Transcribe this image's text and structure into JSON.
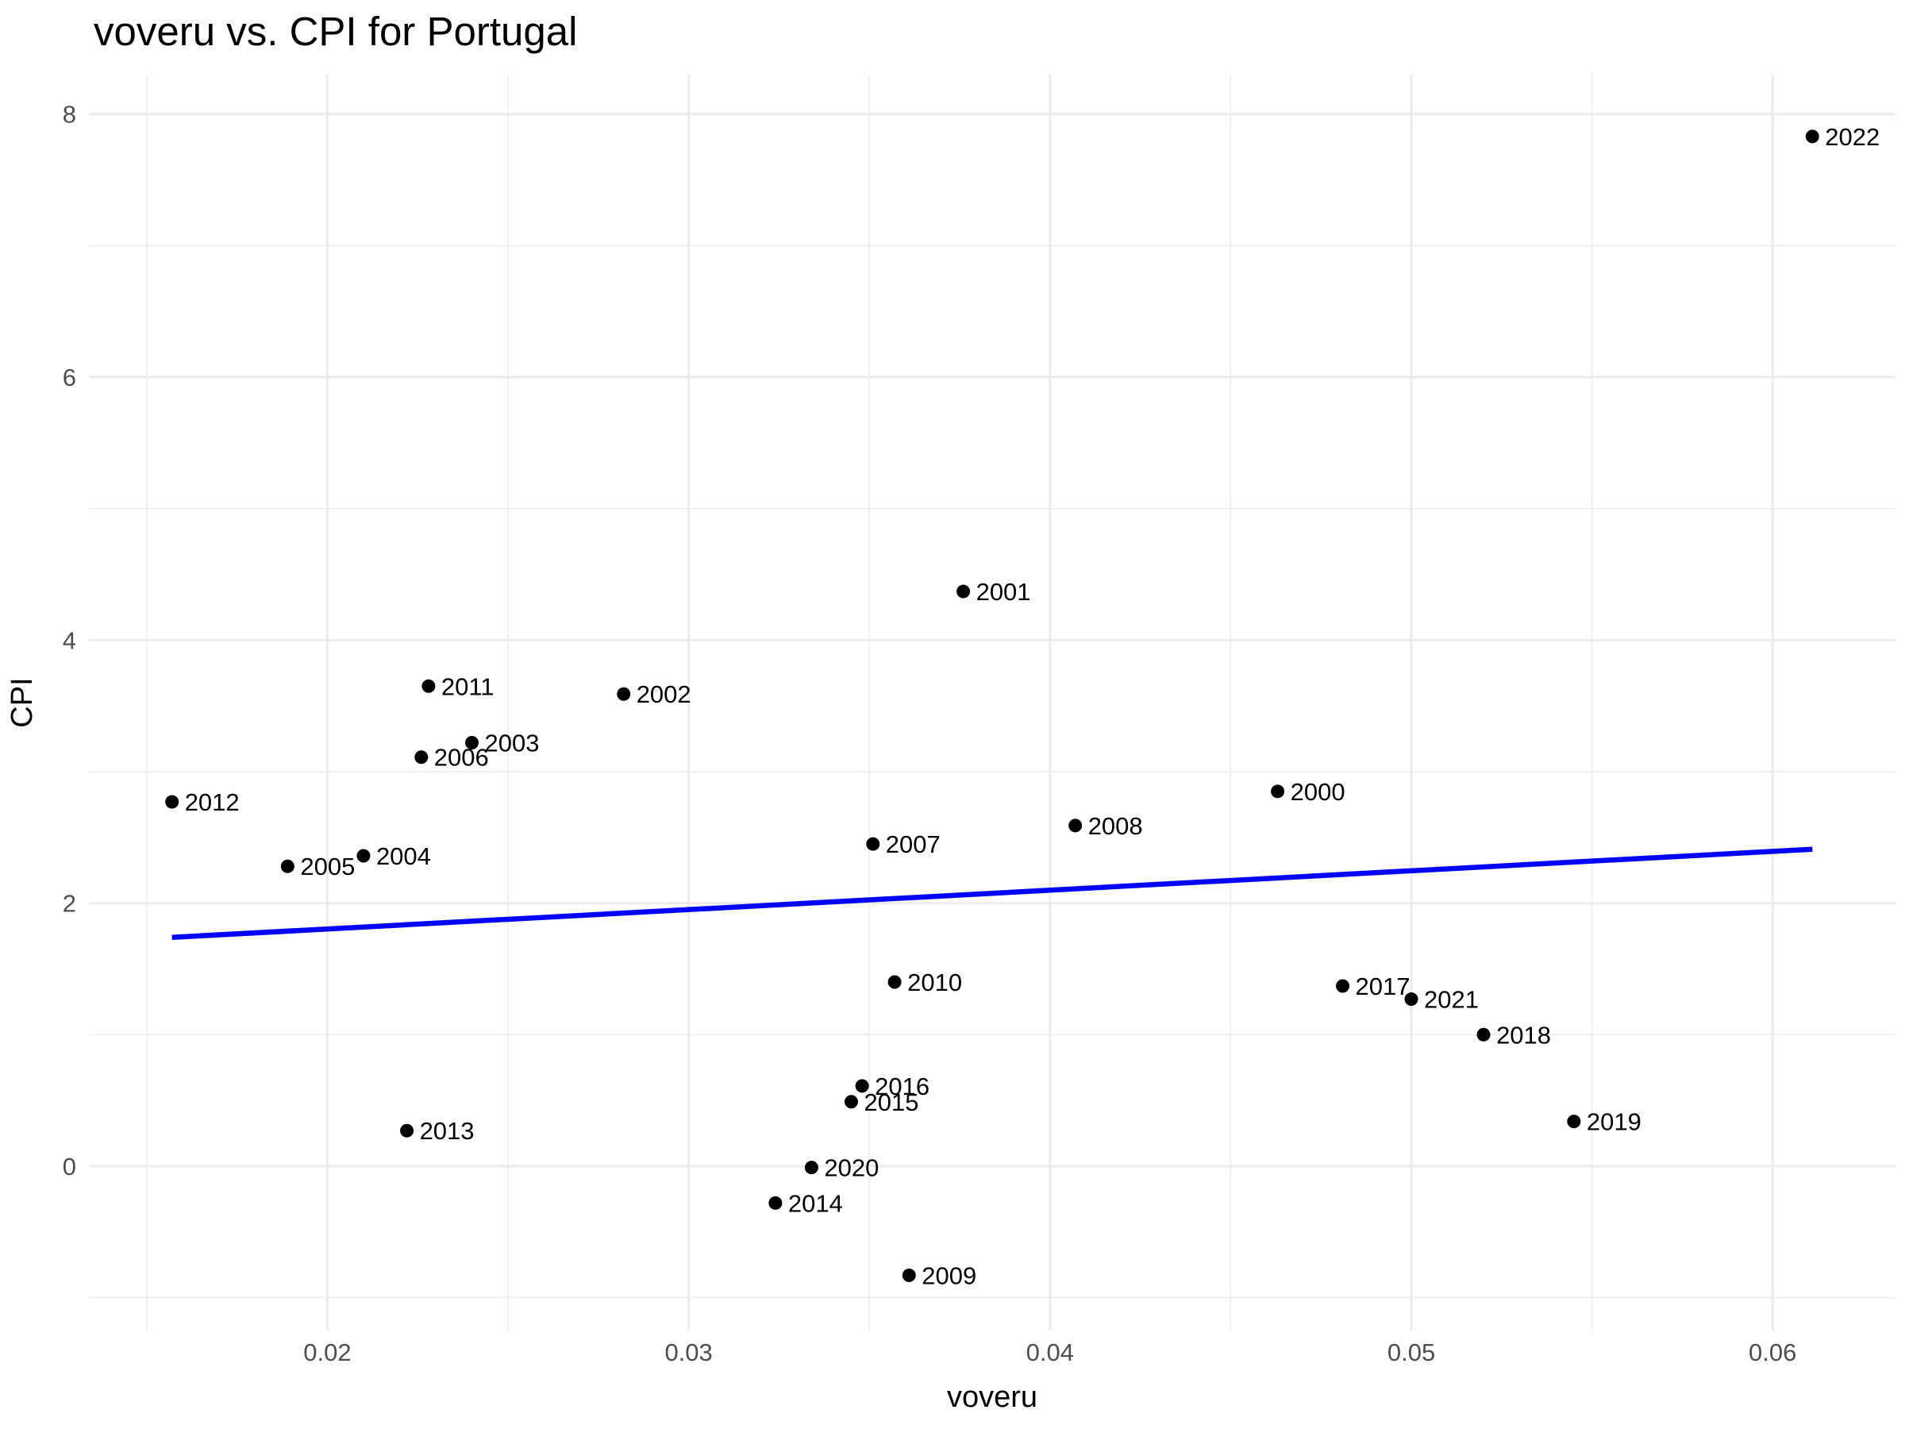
{
  "chart_data": {
    "type": "scatter",
    "title": "voveru vs. CPI for Portugal",
    "xlabel": "voveru",
    "ylabel": "CPI",
    "xlim": [
      0.0134,
      0.0634
    ],
    "ylim": [
      -1.25,
      8.3
    ],
    "x_ticks": [
      {
        "value": 0.02,
        "label": "0.02"
      },
      {
        "value": 0.03,
        "label": "0.03"
      },
      {
        "value": 0.04,
        "label": "0.04"
      },
      {
        "value": 0.05,
        "label": "0.05"
      },
      {
        "value": 0.06,
        "label": "0.06"
      }
    ],
    "y_ticks": [
      {
        "value": 0,
        "label": "0"
      },
      {
        "value": 2,
        "label": "2"
      },
      {
        "value": 4,
        "label": "4"
      },
      {
        "value": 6,
        "label": "6"
      },
      {
        "value": 8,
        "label": "8"
      }
    ],
    "grid": true,
    "legend": "none",
    "colors": {
      "points": "#000000",
      "trend": "#0000ff",
      "grid": "#ebebeb"
    },
    "points": [
      {
        "label": "2000",
        "x": 0.0463,
        "y": 2.85
      },
      {
        "label": "2001",
        "x": 0.0376,
        "y": 4.37
      },
      {
        "label": "2002",
        "x": 0.0282,
        "y": 3.59
      },
      {
        "label": "2003",
        "x": 0.024,
        "y": 3.22
      },
      {
        "label": "2004",
        "x": 0.021,
        "y": 2.36
      },
      {
        "label": "2005",
        "x": 0.0189,
        "y": 2.28
      },
      {
        "label": "2006",
        "x": 0.0226,
        "y": 3.11
      },
      {
        "label": "2007",
        "x": 0.0351,
        "y": 2.45
      },
      {
        "label": "2008",
        "x": 0.0407,
        "y": 2.59
      },
      {
        "label": "2009",
        "x": 0.0361,
        "y": -0.83
      },
      {
        "label": "2010",
        "x": 0.0357,
        "y": 1.4
      },
      {
        "label": "2011",
        "x": 0.0228,
        "y": 3.65
      },
      {
        "label": "2012",
        "x": 0.0157,
        "y": 2.77
      },
      {
        "label": "2013",
        "x": 0.0222,
        "y": 0.27
      },
      {
        "label": "2014",
        "x": 0.0324,
        "y": -0.28
      },
      {
        "label": "2015",
        "x": 0.0345,
        "y": 0.49
      },
      {
        "label": "2016",
        "x": 0.0348,
        "y": 0.61
      },
      {
        "label": "2017",
        "x": 0.0481,
        "y": 1.37
      },
      {
        "label": "2018",
        "x": 0.052,
        "y": 1.0
      },
      {
        "label": "2019",
        "x": 0.0545,
        "y": 0.34
      },
      {
        "label": "2020",
        "x": 0.0334,
        "y": -0.01
      },
      {
        "label": "2021",
        "x": 0.05,
        "y": 1.27
      },
      {
        "label": "2022",
        "x": 0.0611,
        "y": 7.83
      }
    ],
    "trend_line": {
      "x": [
        0.0157,
        0.0611
      ],
      "y": [
        1.74,
        2.41
      ]
    }
  }
}
